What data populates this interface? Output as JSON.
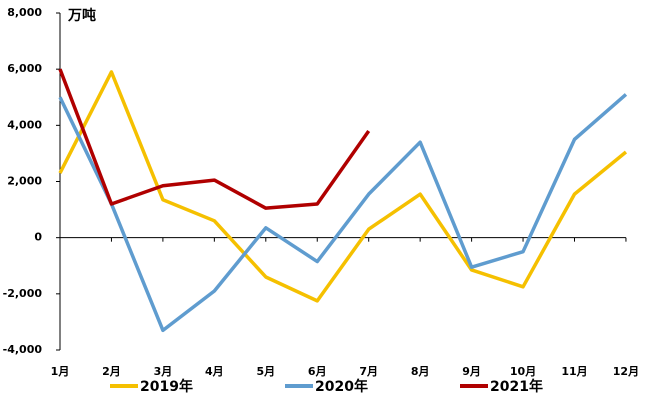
{
  "chart_data": {
    "type": "line",
    "unit_label": "万吨",
    "categories": [
      "1月",
      "2月",
      "3月",
      "4月",
      "5月",
      "6月",
      "7月",
      "8月",
      "9月",
      "10月",
      "11月",
      "12月"
    ],
    "series": [
      {
        "name": "2019年",
        "color": "#f5c000",
        "values": [
          2300,
          5900,
          1350,
          600,
          -1400,
          -2250,
          300,
          1550,
          -1150,
          -1750,
          1550,
          3050
        ]
      },
      {
        "name": "2020年",
        "color": "#5f9ccf",
        "values": [
          5000,
          1200,
          -3300,
          -1900,
          350,
          -850,
          1550,
          3400,
          -1050,
          -500,
          3500,
          5100
        ]
      },
      {
        "name": "2021年",
        "color": "#b00000",
        "values": [
          6000,
          1200,
          1850,
          2050,
          1050,
          1200,
          3800,
          null,
          null,
          null,
          null,
          null
        ]
      }
    ],
    "ylim": [
      -4000,
      8000
    ],
    "yticks": [
      {
        "value": -4000,
        "label": "-4,000"
      },
      {
        "value": -2000,
        "label": "-2,000"
      },
      0,
      {
        "value": 2000,
        "label": "2,000"
      },
      {
        "value": 4000,
        "label": "4,000"
      },
      {
        "value": 6000,
        "label": "6,000"
      },
      {
        "value": 8000,
        "label": "8,000"
      }
    ],
    "grid": false,
    "legend": "bottom"
  }
}
